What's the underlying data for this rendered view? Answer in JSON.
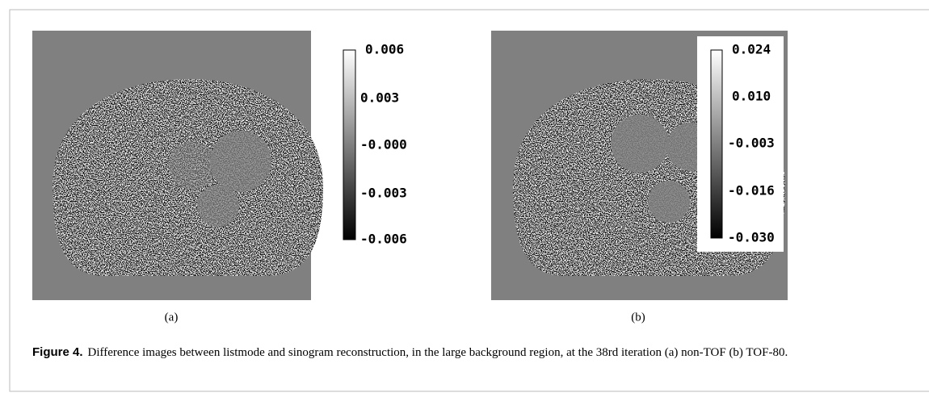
{
  "panels": [
    {
      "label": "(a)",
      "colorbar_ticks": [
        "0.006",
        "0.003",
        "-0.000",
        "-0.003",
        "-0.006"
      ]
    },
    {
      "label": "(b)",
      "colorbar_ticks": [
        "0.024",
        "0.010",
        "-0.003",
        "-0.016",
        "-0.030"
      ]
    }
  ],
  "caption": {
    "label": "Figure 4.",
    "text": "Difference images between listmode and sinogram reconstruction, in the large background region, at the 38rd iteration (a) non-TOF (b) TOF-80."
  }
}
